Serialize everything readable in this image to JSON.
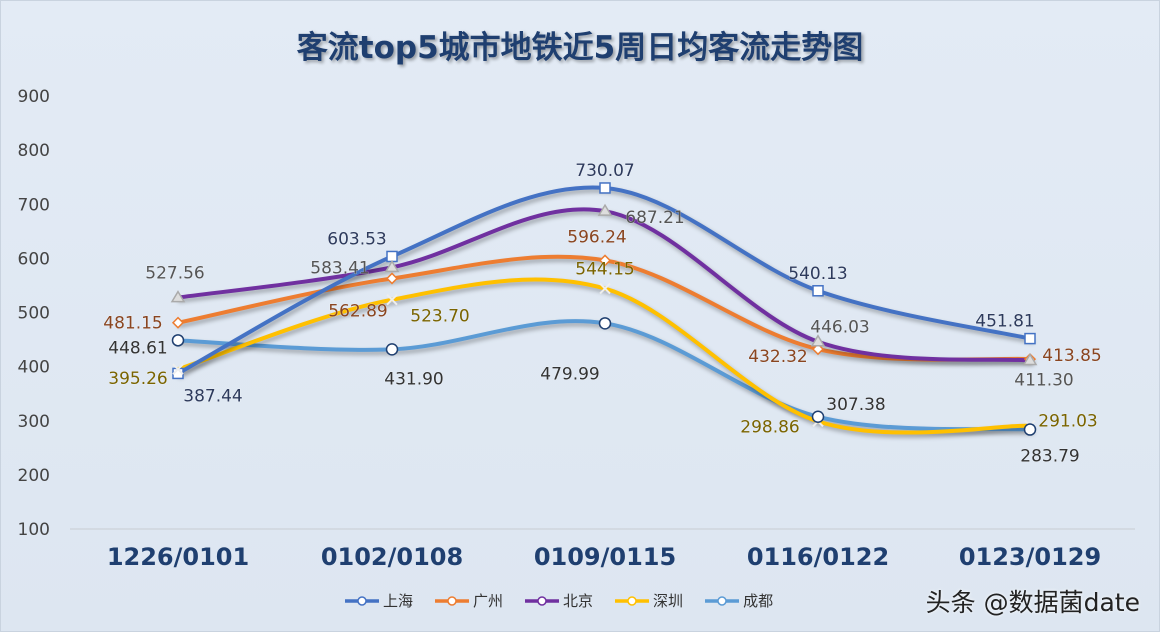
{
  "chart_data": {
    "type": "line",
    "title": "客流top5城市地铁近5周日均客流走势图",
    "categories": [
      "1226/0101",
      "0102/0108",
      "0109/0115",
      "0116/0122",
      "0123/0129"
    ],
    "ylim": [
      100,
      900
    ],
    "yticks": [
      100,
      200,
      300,
      400,
      500,
      600,
      700,
      800,
      900
    ],
    "grid": false,
    "legend": "bottom",
    "smooth": true,
    "series": [
      {
        "name": "上海",
        "color": "#4472C4",
        "label_color": "#2d3a5c",
        "marker": "square",
        "values": [
          387.44,
          603.53,
          730.07,
          540.13,
          451.81
        ]
      },
      {
        "name": "广州",
        "color": "#ED7D31",
        "label_color": "#8a4520",
        "marker": "diamond",
        "values": [
          481.15,
          562.89,
          596.24,
          432.32,
          413.85
        ]
      },
      {
        "name": "北京",
        "color": "#7030A0",
        "label_color": "#555555",
        "marker": "triangle",
        "values": [
          527.56,
          583.41,
          687.21,
          446.03,
          411.3
        ]
      },
      {
        "name": "深圳",
        "color": "#FFC000",
        "label_color": "#7a6400",
        "marker": "x",
        "values": [
          395.26,
          523.7,
          544.15,
          298.86,
          291.03
        ]
      },
      {
        "name": "成都",
        "color": "#5B9BD5",
        "label_color": "#333333",
        "marker": "circle",
        "values": [
          448.61,
          431.9,
          479.99,
          307.38,
          283.79
        ]
      }
    ]
  },
  "watermark": "头条 @数据菌date"
}
